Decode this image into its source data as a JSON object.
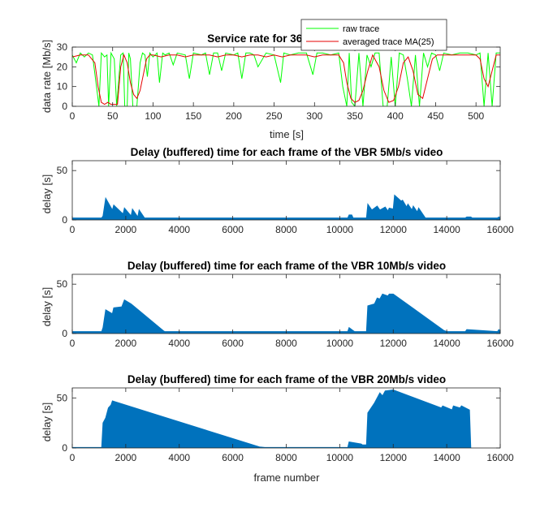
{
  "chart_data": [
    {
      "type": "line",
      "title": "Service rate for 36 Mb/s trace. (",
      "xlabel": "time [s]",
      "ylabel": "data rate [Mb/s]",
      "xlim": [
        0,
        530
      ],
      "ylim": [
        0,
        30
      ],
      "xticks": [
        0,
        50,
        100,
        150,
        200,
        250,
        300,
        350,
        400,
        450,
        500
      ],
      "yticks": [
        0,
        10,
        20,
        30
      ],
      "grid": false,
      "legend": "top-right",
      "series": [
        {
          "name": "raw trace",
          "color": "#00ff00",
          "x": [
            0,
            5,
            10,
            15,
            20,
            25,
            30,
            33,
            36,
            40,
            43,
            45,
            48,
            52,
            55,
            60,
            63,
            65,
            68,
            70,
            72,
            75,
            80,
            84,
            87,
            90,
            93,
            96,
            100,
            105,
            108,
            112,
            115,
            120,
            125,
            130,
            140,
            145,
            150,
            160,
            165,
            170,
            175,
            180,
            185,
            190,
            200,
            205,
            210,
            215,
            220,
            225,
            230,
            240,
            250,
            258,
            262,
            270,
            280,
            290,
            298,
            303,
            310,
            320,
            330,
            335,
            340,
            343,
            346,
            350,
            355,
            360,
            365,
            370,
            375,
            380,
            385,
            390,
            395,
            400,
            405,
            410,
            415,
            420,
            425,
            430,
            435,
            440,
            445,
            450,
            455,
            460,
            470,
            480,
            490,
            500,
            505,
            510,
            515,
            520,
            525,
            530
          ],
          "values": [
            26,
            22,
            27,
            25,
            27,
            26,
            10,
            0,
            27,
            25,
            26,
            0,
            27,
            24,
            0,
            26,
            27,
            0,
            0,
            27,
            24,
            0,
            0,
            22,
            27,
            26,
            15,
            27,
            25,
            27,
            12,
            27,
            26,
            27,
            21,
            27,
            26,
            14,
            27,
            26,
            27,
            16,
            27,
            27,
            18,
            27,
            26,
            27,
            14,
            27,
            27,
            26,
            20,
            27,
            26,
            12,
            27,
            26,
            27,
            27,
            16,
            27,
            27,
            26,
            27,
            10,
            0,
            27,
            2,
            0,
            27,
            0,
            26,
            20,
            27,
            27,
            0,
            0,
            25,
            0,
            27,
            26,
            14,
            0,
            26,
            0,
            27,
            20,
            27,
            26,
            18,
            27,
            26,
            27,
            27,
            26,
            27,
            0,
            27,
            0,
            27,
            27
          ]
        },
        {
          "name": "averaged trace MA(25)",
          "color": "#e60000",
          "x": [
            0,
            10,
            20,
            28,
            32,
            36,
            40,
            44,
            48,
            52,
            56,
            60,
            64,
            68,
            72,
            76,
            80,
            84,
            88,
            92,
            96,
            100,
            110,
            120,
            130,
            140,
            150,
            160,
            170,
            180,
            190,
            200,
            210,
            220,
            230,
            240,
            250,
            260,
            270,
            280,
            290,
            300,
            310,
            320,
            330,
            336,
            340,
            345,
            350,
            355,
            360,
            366,
            372,
            380,
            386,
            392,
            398,
            404,
            410,
            416,
            422,
            428,
            434,
            440,
            446,
            452,
            460,
            470,
            480,
            490,
            500,
            505,
            510,
            515,
            520,
            525,
            530
          ],
          "values": [
            25,
            26,
            26,
            22,
            10,
            2,
            1,
            2,
            1,
            1,
            1,
            20,
            26,
            22,
            12,
            6,
            4,
            8,
            16,
            24,
            26,
            26,
            25,
            26,
            26,
            25,
            26,
            26,
            26,
            25,
            26,
            26,
            25,
            26,
            26,
            25,
            26,
            25,
            26,
            26,
            26,
            25,
            26,
            26,
            26,
            22,
            12,
            4,
            2,
            3,
            8,
            18,
            26,
            20,
            8,
            2,
            3,
            10,
            22,
            25,
            18,
            6,
            4,
            14,
            24,
            26,
            26,
            26,
            26,
            26,
            26,
            24,
            14,
            10,
            18,
            26,
            26
          ]
        }
      ]
    },
    {
      "type": "area",
      "title": "Delay (buffered) time for each frame of the VBR 5Mb/s video",
      "xlabel": "",
      "ylabel": "delay [s]",
      "xlim": [
        0,
        16000
      ],
      "ylim": [
        0,
        60
      ],
      "xticks": [
        0,
        2000,
        4000,
        6000,
        8000,
        10000,
        12000,
        14000,
        16000
      ],
      "yticks": [
        0,
        50
      ],
      "color": "#0072bd",
      "grid": false,
      "x": [
        0,
        1100,
        1150,
        1250,
        1500,
        1550,
        1900,
        1950,
        2200,
        2250,
        2450,
        2500,
        2700,
        2800,
        2850,
        10300,
        10350,
        10450,
        10500,
        11000,
        11050,
        11200,
        11400,
        11500,
        11700,
        11800,
        11850,
        12000,
        12050,
        12300,
        12350,
        12500,
        12550,
        12700,
        12750,
        12900,
        12950,
        13200,
        13250,
        14700,
        14750,
        14900,
        14950,
        15900,
        15950,
        16000
      ],
      "values": [
        2,
        2,
        4,
        22,
        10,
        15,
        6,
        12,
        4,
        11,
        3,
        10,
        2,
        2,
        2,
        2,
        5,
        5,
        2,
        2,
        16,
        10,
        14,
        10,
        13,
        9,
        12,
        11,
        25,
        19,
        20,
        13,
        16,
        10,
        14,
        8,
        12,
        2,
        2,
        2,
        3,
        3,
        2,
        2,
        3,
        2
      ]
    },
    {
      "type": "area",
      "title": "Delay (buffered) time for each frame of the VBR 10Mb/s video",
      "xlabel": "",
      "ylabel": "delay [s]",
      "xlim": [
        0,
        16000
      ],
      "ylim": [
        0,
        60
      ],
      "xticks": [
        0,
        2000,
        4000,
        6000,
        8000,
        10000,
        12000,
        14000,
        16000
      ],
      "yticks": [
        0,
        50
      ],
      "color": "#0072bd",
      "grid": false,
      "x": [
        0,
        1100,
        1150,
        1250,
        1500,
        1550,
        1850,
        1950,
        2200,
        3400,
        3450,
        10300,
        10350,
        10500,
        10550,
        11000,
        11050,
        11300,
        11400,
        11500,
        11600,
        11800,
        11850,
        12000,
        13900,
        14000,
        14700,
        14750,
        15900,
        15950,
        16000
      ],
      "values": [
        2,
        2,
        6,
        24,
        20,
        26,
        27,
        34,
        30,
        3,
        2,
        2,
        6,
        3,
        2,
        2,
        28,
        30,
        36,
        35,
        40,
        38,
        40,
        40,
        3,
        2,
        2,
        4,
        2,
        4,
        2
      ]
    },
    {
      "type": "area",
      "title": "Delay (buffered) time for each frame of the VBR 20Mb/s video",
      "xlabel": "frame number",
      "ylabel": "delay [s]",
      "xlim": [
        0,
        16000
      ],
      "ylim": [
        0,
        60
      ],
      "xticks": [
        0,
        2000,
        4000,
        6000,
        8000,
        10000,
        12000,
        14000,
        16000
      ],
      "yticks": [
        0,
        50
      ],
      "color": "#0072bd",
      "grid": false,
      "x": [
        0,
        1100,
        1150,
        1250,
        1350,
        1450,
        1500,
        7000,
        7200,
        10300,
        10350,
        10800,
        10850,
        11000,
        11050,
        11300,
        11500,
        11600,
        11700,
        12000,
        13800,
        13850,
        14200,
        14250,
        14500,
        14550,
        14850,
        14900
      ],
      "values": [
        0.5,
        0.5,
        25,
        30,
        40,
        43,
        47,
        1,
        0.5,
        0.5,
        6,
        4,
        3,
        3,
        35,
        45,
        55,
        52,
        57,
        58,
        40,
        42,
        38,
        42,
        40,
        42,
        38,
        0
      ]
    }
  ]
}
